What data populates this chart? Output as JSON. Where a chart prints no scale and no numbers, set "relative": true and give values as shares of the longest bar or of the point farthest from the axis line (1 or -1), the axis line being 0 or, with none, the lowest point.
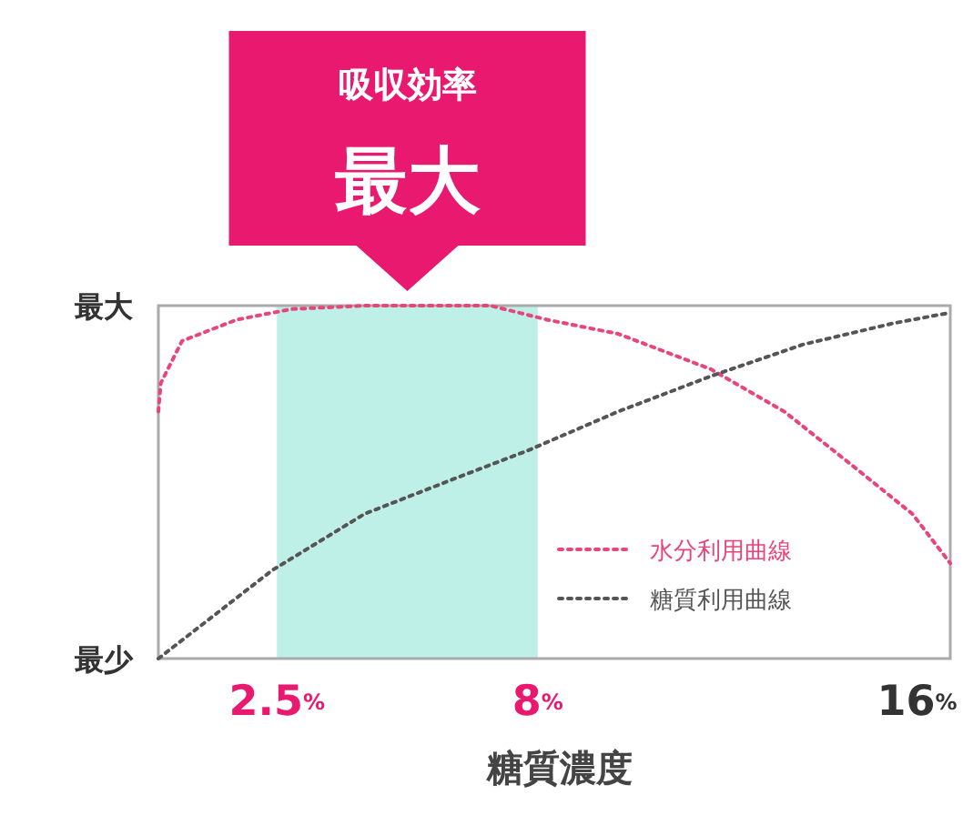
{
  "chart_data": {
    "type": "line",
    "xlabel": "糖質濃度",
    "annotations": [
      "吸収効率",
      "最大",
      "最大",
      "最少"
    ],
    "relative": true,
    "series": [
      {
        "name": "水分利用曲線",
        "color": "#e8457a",
        "x": [
          0,
          0.05,
          0.5,
          1.65,
          2.8,
          4.35,
          7.0,
          8.2,
          9.7,
          11.65,
          13.2,
          14.7,
          15.9,
          16.7
        ],
        "values": [
          0.7,
          0.78,
          0.9,
          0.96,
          0.99,
          1.0,
          1.0,
          0.96,
          0.92,
          0.82,
          0.7,
          0.54,
          0.41,
          0.27
        ]
      },
      {
        "name": "糖質利用曲線",
        "color": "#555555",
        "x": [
          0,
          2.4,
          4.35,
          6.25,
          7.8,
          9.7,
          11.65,
          13.6,
          15.5,
          16.7
        ],
        "values": [
          0,
          0.25,
          0.41,
          0.51,
          0.59,
          0.7,
          0.8,
          0.89,
          0.95,
          0.98
        ]
      }
    ],
    "xlim": [
      0,
      16.7
    ],
    "xticks": [
      {
        "value": 2.5,
        "label": "2.5%"
      },
      {
        "value": 8,
        "label": "8%"
      },
      {
        "value": 16,
        "label": "16%"
      }
    ],
    "bands": [
      {
        "axis": "x",
        "from": 2.5,
        "to": 8,
        "color": "#bff0e8"
      }
    ],
    "grid": false,
    "legend": "bottom right",
    "marker": "none",
    "line_style": "dotted"
  }
}
